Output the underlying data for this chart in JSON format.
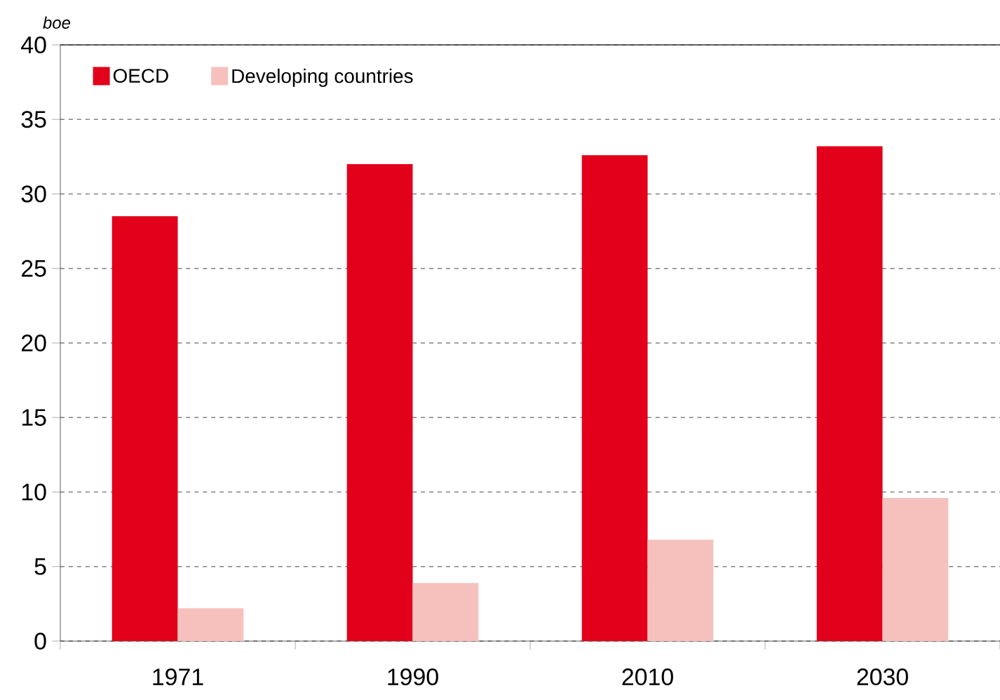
{
  "chart_data": {
    "type": "bar",
    "ylabel": "boe",
    "categories": [
      "1971",
      "1990",
      "2010",
      "2030"
    ],
    "series": [
      {
        "name": "OECD",
        "color": "#e2001a",
        "values": [
          28.5,
          32.0,
          32.6,
          33.2
        ]
      },
      {
        "name": "Developing countries",
        "color": "#f6c1bd",
        "values": [
          2.2,
          3.9,
          6.8,
          9.6
        ]
      }
    ],
    "ylim": [
      0,
      40
    ],
    "yticks": [
      0,
      5,
      10,
      15,
      20,
      25,
      30,
      35,
      40
    ],
    "grid": "y",
    "legend": "top left"
  }
}
